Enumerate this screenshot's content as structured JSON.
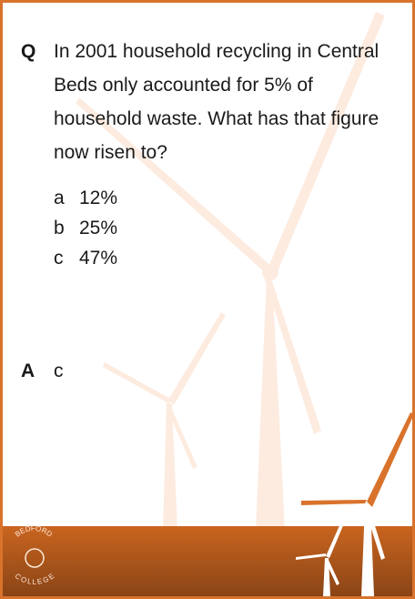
{
  "question": {
    "label": "Q",
    "text": "In 2001 household recycling in Central Beds only accounted for 5% of household waste. What has that figure now risen to?"
  },
  "options": [
    {
      "letter": "a",
      "text": "12%"
    },
    {
      "letter": "b",
      "text": "25%"
    },
    {
      "letter": "c",
      "text": "47%"
    }
  ],
  "answer": {
    "label": "A",
    "text": "c"
  },
  "logo": {
    "top": "BEDFORD",
    "bottom": "COLLEGE"
  }
}
